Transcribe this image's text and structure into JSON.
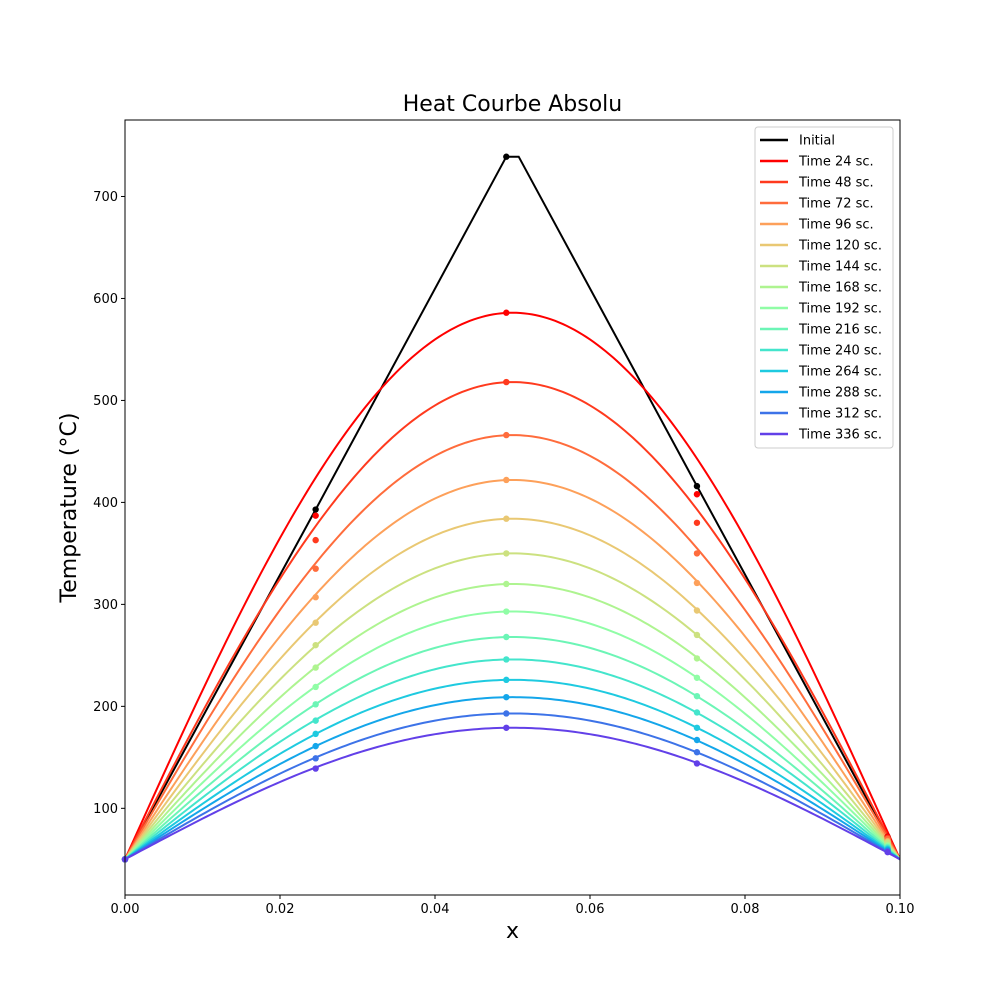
{
  "chart_data": {
    "type": "line",
    "title": "Heat Courbe Absolu",
    "xlabel": "x",
    "ylabel": "Temperature (°C)",
    "xlim": [
      0.0,
      0.1
    ],
    "ylim": [
      15,
      775
    ],
    "xticks": [
      0.0,
      0.02,
      0.04,
      0.06,
      0.08,
      0.1
    ],
    "xtick_labels": [
      "0.00",
      "0.02",
      "0.04",
      "0.06",
      "0.08",
      "0.10"
    ],
    "yticks": [
      100,
      200,
      300,
      400,
      500,
      600,
      700
    ],
    "ytick_labels": [
      "100",
      "200",
      "300",
      "400",
      "500",
      "600",
      "700"
    ],
    "grid": false,
    "legend_position": "top-right",
    "boundary_temperature": 50,
    "marker_x": [
      0.0,
      0.0246,
      0.0492,
      0.0738,
      0.0984
    ],
    "initial": {
      "name": "Initial",
      "color": "#000000",
      "x": [
        0.0,
        0.0246,
        0.0492,
        0.0508,
        0.0738,
        0.0984,
        0.1
      ],
      "y": [
        50,
        393,
        739,
        739,
        416,
        72,
        50
      ],
      "marker_y": [
        50,
        393,
        739,
        416,
        72
      ]
    },
    "series": [
      {
        "name": "Time 24 sc.",
        "color": "#ff0000",
        "peak": 586,
        "marker_y": [
          50,
          387,
          586,
          408,
          72
        ]
      },
      {
        "name": "Time 48 sc.",
        "color": "#ff3a1e",
        "peak": 518,
        "marker_y": [
          50,
          363,
          518,
          380,
          71
        ]
      },
      {
        "name": "Time 72 sc.",
        "color": "#ff6c3c",
        "peak": 466,
        "marker_y": [
          50,
          335,
          466,
          350,
          70
        ]
      },
      {
        "name": "Time 96 sc.",
        "color": "#fda05a",
        "peak": 422,
        "marker_y": [
          50,
          307,
          422,
          321,
          68
        ]
      },
      {
        "name": "Time 120 sc.",
        "color": "#e9c873",
        "peak": 384,
        "marker_y": [
          50,
          282,
          384,
          294,
          67
        ]
      },
      {
        "name": "Time 144 sc.",
        "color": "#cce180",
        "peak": 350,
        "marker_y": [
          50,
          260,
          350,
          270,
          66
        ]
      },
      {
        "name": "Time 168 sc.",
        "color": "#aef490",
        "peak": 320,
        "marker_y": [
          50,
          238,
          320,
          247,
          64
        ]
      },
      {
        "name": "Time 192 sc.",
        "color": "#90fda6",
        "peak": 293,
        "marker_y": [
          50,
          219,
          293,
          228,
          63
        ]
      },
      {
        "name": "Time 216 sc.",
        "color": "#6cf5b6",
        "peak": 268,
        "marker_y": [
          50,
          202,
          268,
          210,
          62
        ]
      },
      {
        "name": "Time 240 sc.",
        "color": "#44e5cc",
        "peak": 246,
        "marker_y": [
          50,
          186,
          246,
          194,
          61
        ]
      },
      {
        "name": "Time 264 sc.",
        "color": "#1ecae0",
        "peak": 226,
        "marker_y": [
          50,
          173,
          226,
          179,
          60
        ]
      },
      {
        "name": "Time 288 sc.",
        "color": "#14a6ea",
        "peak": 209,
        "marker_y": [
          50,
          161,
          209,
          167,
          59
        ]
      },
      {
        "name": "Time 312 sc.",
        "color": "#3d73e8",
        "peak": 193,
        "marker_y": [
          50,
          149,
          193,
          155,
          58
        ]
      },
      {
        "name": "Time 336 sc.",
        "color": "#6240e8",
        "peak": 179,
        "marker_y": [
          50,
          139,
          179,
          144,
          57
        ]
      }
    ]
  }
}
